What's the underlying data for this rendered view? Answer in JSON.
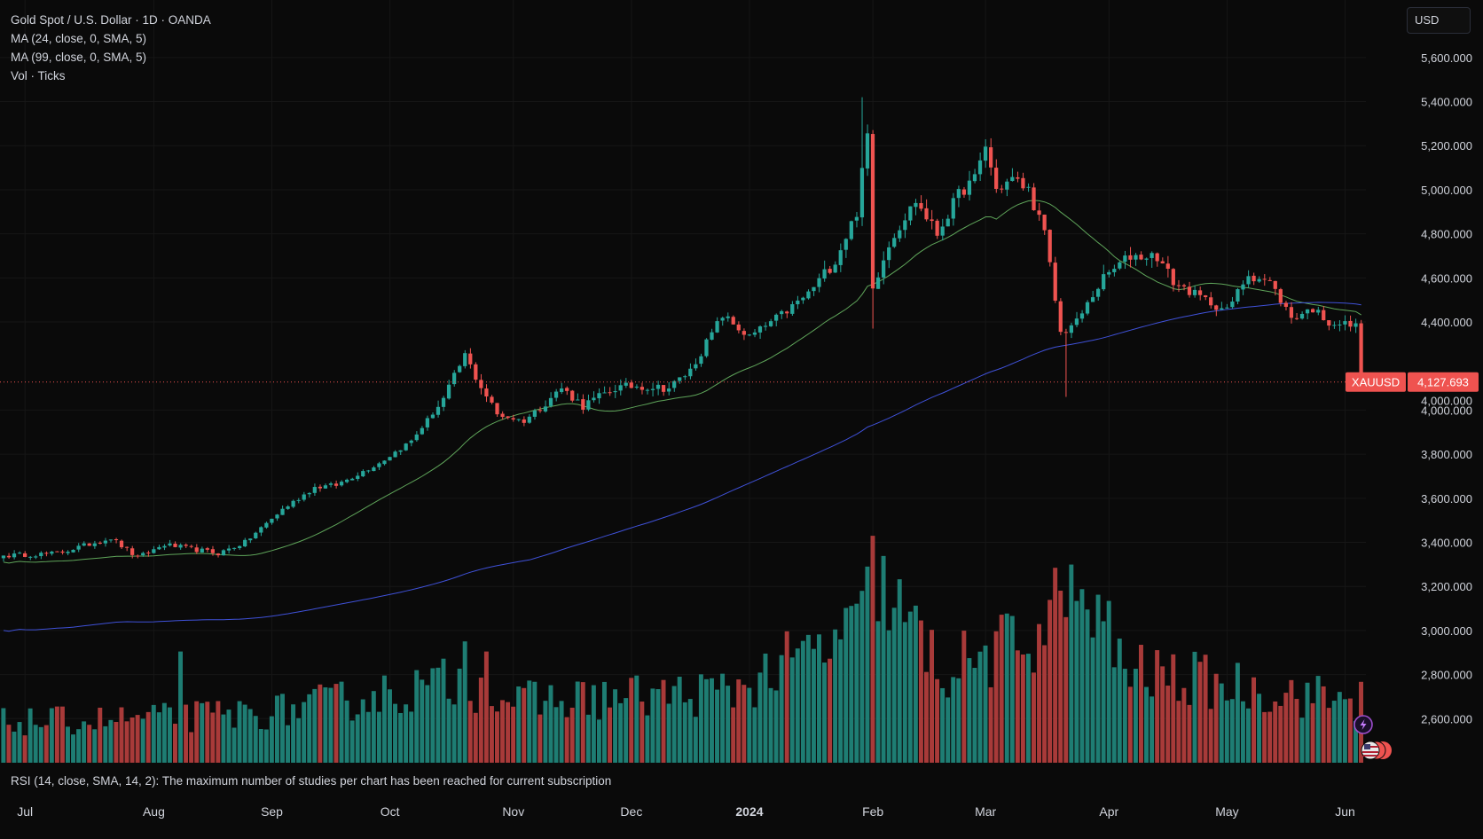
{
  "legend": {
    "symbol_line": "Gold Spot / U.S. Dollar · 1D · OANDA",
    "ma1": "MA (24, close, 0, SMA, 5)",
    "ma2": "MA (99, close, 0, SMA, 5)",
    "vol": "Vol · Ticks"
  },
  "currency_button": "USD",
  "rsi_message": "RSI (14, close, SMA, 14, 2): The maximum number of studies per chart has been reached for current subscription",
  "colors": {
    "background": "#0a0a0a",
    "up": "#26a69a",
    "down": "#ef5350",
    "up_volume": "#1e7d73",
    "down_volume": "#a83a39",
    "ma24": "#5fa55a",
    "ma99": "#3f51d8",
    "price_line": "#ef5350",
    "text": "#d1d4dc",
    "grid": "#161616"
  },
  "price_label": {
    "symbol": "XAUUSD",
    "value": "4,127.693"
  },
  "chart_data": {
    "type": "candlestick",
    "symbol": "XAUUSD",
    "timeframe": "1D",
    "y_range": [
      2400,
      5700
    ],
    "y_ticks": [
      {
        "value": 5600,
        "label": "5,600.000"
      },
      {
        "value": 5400,
        "label": "5,400.000"
      },
      {
        "value": 5200,
        "label": "5,200.000"
      },
      {
        "value": 5000,
        "label": "5,000.000"
      },
      {
        "value": 4800,
        "label": "4,800.000"
      },
      {
        "value": 4600,
        "label": "4,600.000"
      },
      {
        "value": 4400,
        "label": "4,400.000"
      },
      {
        "value": 4000,
        "label": "4,000.000"
      },
      {
        "value": 3800,
        "label": "3,800.000"
      },
      {
        "value": 3600,
        "label": "3,600.000"
      },
      {
        "value": 3400,
        "label": "3,400.000"
      },
      {
        "value": 3200,
        "label": "3,200.000"
      },
      {
        "value": 3000,
        "label": "3,000.000"
      },
      {
        "value": 2800,
        "label": "2,800.000"
      },
      {
        "value": 2600,
        "label": "2,600.000"
      }
    ],
    "overlapping_tick": {
      "value": 4044,
      "label": "4,000.000"
    },
    "x_ticks": [
      {
        "label": "Jul",
        "bar": 4,
        "bold": false
      },
      {
        "label": "Aug",
        "bar": 28,
        "bold": false
      },
      {
        "label": "Sep",
        "bar": 50,
        "bold": false
      },
      {
        "label": "Oct",
        "bar": 72,
        "bold": false
      },
      {
        "label": "Nov",
        "bar": 95,
        "bold": false
      },
      {
        "label": "Dec",
        "bar": 117,
        "bold": false
      },
      {
        "label": "2024",
        "bar": 139,
        "bold": true
      },
      {
        "label": "Feb",
        "bar": 162,
        "bold": false
      },
      {
        "label": "Mar",
        "bar": 183,
        "bold": false
      },
      {
        "label": "Apr",
        "bar": 206,
        "bold": false
      },
      {
        "label": "May",
        "bar": 228,
        "bold": false
      },
      {
        "label": "Jun",
        "bar": 250,
        "bold": false
      }
    ],
    "last_price": 4127.693,
    "path_anchors": [
      [
        0,
        3340
      ],
      [
        10,
        3350
      ],
      [
        20,
        3420
      ],
      [
        25,
        3330
      ],
      [
        30,
        3390
      ],
      [
        40,
        3350
      ],
      [
        45,
        3400
      ],
      [
        52,
        3550
      ],
      [
        58,
        3650
      ],
      [
        62,
        3660
      ],
      [
        70,
        3760
      ],
      [
        76,
        3860
      ],
      [
        82,
        4050
      ],
      [
        86,
        4250
      ],
      [
        88,
        4150
      ],
      [
        92,
        3980
      ],
      [
        97,
        3950
      ],
      [
        104,
        4100
      ],
      [
        108,
        4020
      ],
      [
        114,
        4100
      ],
      [
        118,
        4110
      ],
      [
        124,
        4100
      ],
      [
        128,
        4180
      ],
      [
        134,
        4430
      ],
      [
        139,
        4330
      ],
      [
        146,
        4450
      ],
      [
        150,
        4530
      ],
      [
        155,
        4680
      ],
      [
        159,
        4900
      ],
      [
        161,
        5250
      ],
      [
        162,
        4550
      ],
      [
        164,
        4700
      ],
      [
        166,
        4800
      ],
      [
        170,
        4950
      ],
      [
        174,
        4800
      ],
      [
        178,
        4980
      ],
      [
        181,
        5050
      ],
      [
        183,
        5200
      ],
      [
        185,
        5000
      ],
      [
        188,
        5050
      ],
      [
        191,
        5000
      ],
      [
        194,
        4800
      ],
      [
        197,
        4350
      ],
      [
        200,
        4400
      ],
      [
        205,
        4600
      ],
      [
        210,
        4700
      ],
      [
        215,
        4700
      ],
      [
        218,
        4580
      ],
      [
        224,
        4500
      ],
      [
        228,
        4450
      ],
      [
        232,
        4620
      ],
      [
        236,
        4580
      ],
      [
        240,
        4420
      ],
      [
        244,
        4460
      ],
      [
        247,
        4400
      ],
      [
        250,
        4390
      ],
      [
        252,
        4380
      ],
      [
        253,
        4127.693
      ]
    ],
    "shocks": [
      {
        "bar": 160,
        "high": 5420
      },
      {
        "bar": 162,
        "low": 4370
      },
      {
        "bar": 198,
        "low": 4060
      }
    ],
    "volume_anchors": [
      [
        0,
        0.2
      ],
      [
        30,
        0.22
      ],
      [
        50,
        0.25
      ],
      [
        85,
        0.4
      ],
      [
        95,
        0.3
      ],
      [
        135,
        0.35
      ],
      [
        160,
        0.65
      ],
      [
        162,
        0.9
      ],
      [
        175,
        0.45
      ],
      [
        190,
        0.6
      ],
      [
        200,
        0.85
      ],
      [
        210,
        0.45
      ],
      [
        253,
        0.3
      ]
    ],
    "volume_peaks": [
      {
        "bar": 33,
        "value": 0.55
      },
      {
        "bar": 86,
        "value": 0.6
      },
      {
        "bar": 90,
        "value": 0.55
      },
      {
        "bar": 160,
        "value": 0.85
      },
      {
        "bar": 161,
        "value": 0.97
      },
      {
        "bar": 163,
        "value": 0.7
      },
      {
        "bar": 185,
        "value": 0.65
      },
      {
        "bar": 198,
        "value": 0.72
      },
      {
        "bar": 199,
        "value": 0.98
      },
      {
        "bar": 200,
        "value": 0.8
      },
      {
        "bar": 253,
        "value": 0.4
      }
    ],
    "series": [
      {
        "name": "MA (24, close, 0, SMA, 5)",
        "color": "#5fa55a"
      },
      {
        "name": "MA (99, close, 0, SMA, 5)",
        "color": "#3f51d8"
      },
      {
        "name": "Vol · Ticks"
      }
    ]
  }
}
